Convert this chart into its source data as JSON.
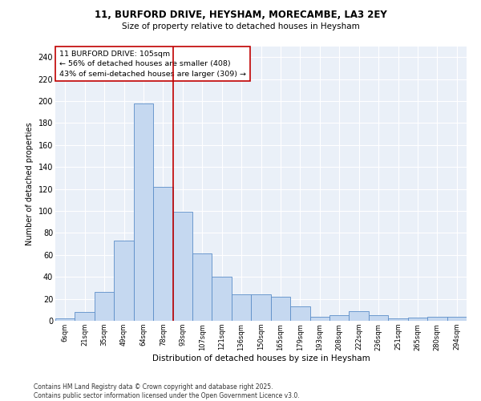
{
  "title_line1": "11, BURFORD DRIVE, HEYSHAM, MORECAMBE, LA3 2EY",
  "title_line2": "Size of property relative to detached houses in Heysham",
  "xlabel": "Distribution of detached houses by size in Heysham",
  "ylabel": "Number of detached properties",
  "categories": [
    "6sqm",
    "21sqm",
    "35sqm",
    "49sqm",
    "64sqm",
    "78sqm",
    "93sqm",
    "107sqm",
    "121sqm",
    "136sqm",
    "150sqm",
    "165sqm",
    "179sqm",
    "193sqm",
    "208sqm",
    "222sqm",
    "236sqm",
    "251sqm",
    "265sqm",
    "280sqm",
    "294sqm"
  ],
  "values": [
    2,
    8,
    26,
    73,
    198,
    122,
    99,
    61,
    40,
    24,
    24,
    22,
    13,
    4,
    5,
    9,
    5,
    2,
    3,
    4,
    4
  ],
  "bar_color": "#c5d8f0",
  "bar_edge_color": "#5b8dc8",
  "vline_color": "#c00000",
  "annotation_text": "11 BURFORD DRIVE: 105sqm\n← 56% of detached houses are smaller (408)\n43% of semi-detached houses are larger (309) →",
  "annotation_box_color": "white",
  "annotation_box_edge_color": "#c00000",
  "footer_text": "Contains HM Land Registry data © Crown copyright and database right 2025.\nContains public sector information licensed under the Open Government Licence v3.0.",
  "bg_color": "#eaf0f8",
  "ylim": [
    0,
    250
  ],
  "yticks": [
    0,
    20,
    40,
    60,
    80,
    100,
    120,
    140,
    160,
    180,
    200,
    220,
    240
  ]
}
